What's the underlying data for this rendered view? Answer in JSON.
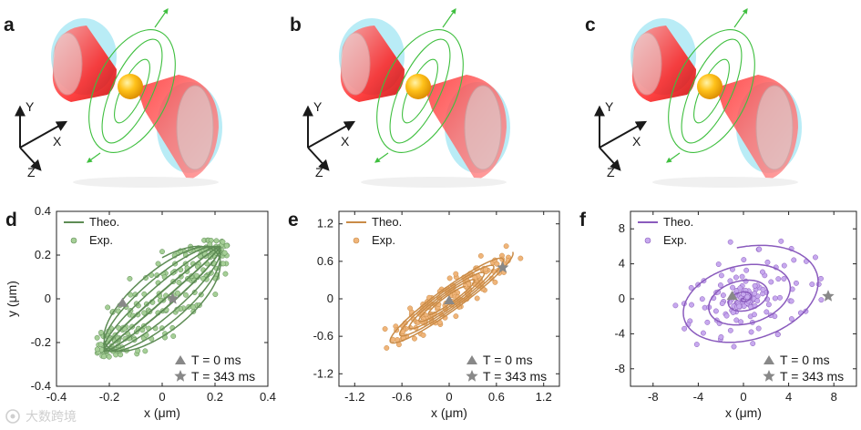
{
  "top_panels": [
    {
      "letter": "a",
      "axes": {
        "y": "Y",
        "x": "X",
        "z": "Z"
      }
    },
    {
      "letter": "b",
      "axes": {
        "y": "Y",
        "x": "X",
        "z": "Z"
      }
    },
    {
      "letter": "c",
      "axes": {
        "y": "Y",
        "x": "X",
        "z": "Z"
      }
    }
  ],
  "watermark": "大数跨境",
  "chart_data": [
    {
      "type": "line",
      "panel": "d",
      "xlabel": "x (μm)",
      "ylabel": "y (μm)",
      "xlim": [
        -0.4,
        0.4
      ],
      "ylim": [
        -0.4,
        0.4
      ],
      "xticks": [
        "-0.4",
        "-0.2",
        "0",
        "0.2",
        "0.4"
      ],
      "yticks": [
        "-0.4",
        "-0.2",
        "0",
        "0.2",
        "0.4"
      ],
      "legend": {
        "theory": "Theo.",
        "experiment": "Exp."
      },
      "markers": {
        "start": "T = 0 ms",
        "end": "T = 343 ms"
      },
      "start_point": [
        -0.15,
        -0.02
      ],
      "end_point": [
        0.04,
        0.0
      ],
      "color": "#5e8c55",
      "light_color": "#a6cf97",
      "trajectory": {
        "kind": "lissajous",
        "a1": 0.22,
        "w1": 1.0,
        "a2": 0.24,
        "w2": 0.97,
        "phi": 0.9,
        "t_end": 40
      }
    },
    {
      "type": "line",
      "panel": "e",
      "xlabel": "x (μm)",
      "ylabel": "",
      "xlim": [
        -1.4,
        1.4
      ],
      "ylim": [
        -1.4,
        1.4
      ],
      "xticks": [
        "-1.2",
        "-0.6",
        "0",
        "0.6",
        "1.2"
      ],
      "yticks": [
        "-1.2",
        "-0.6",
        "0",
        "0.6",
        "1.2"
      ],
      "legend": {
        "theory": "Theo.",
        "experiment": "Exp."
      },
      "markers": {
        "start": "T = 0 ms",
        "end": "T = 343 ms"
      },
      "start_point": [
        0.0,
        -0.03
      ],
      "end_point": [
        0.68,
        0.5
      ],
      "color": "#c98b47",
      "light_color": "#f0b57a",
      "trajectory": {
        "kind": "tilted-ellipse",
        "major": 1.1,
        "minor": 0.18,
        "angle_deg": 43,
        "grow": true,
        "turns": 5
      }
    },
    {
      "type": "line",
      "panel": "f",
      "xlabel": "x (μm)",
      "ylabel": "",
      "xlim": [
        -10,
        10
      ],
      "ylim": [
        -10,
        10
      ],
      "xticks": [
        "-8",
        "-4",
        "0",
        "4",
        "8"
      ],
      "yticks": [
        "-8",
        "-4",
        "0",
        "4",
        "8"
      ],
      "legend": {
        "theory": "Theo.",
        "experiment": "Exp."
      },
      "markers": {
        "start": "T = 0 ms",
        "end": "T = 343 ms"
      },
      "start_point": [
        -1.0,
        0.3
      ],
      "end_point": [
        7.5,
        0.3
      ],
      "color": "#8a5bbd",
      "light_color": "#c7a9ee",
      "trajectory": {
        "kind": "spiral",
        "r_end": 7.8,
        "aspect": 0.72,
        "angle_deg": 30,
        "turns": 4.2
      }
    }
  ]
}
